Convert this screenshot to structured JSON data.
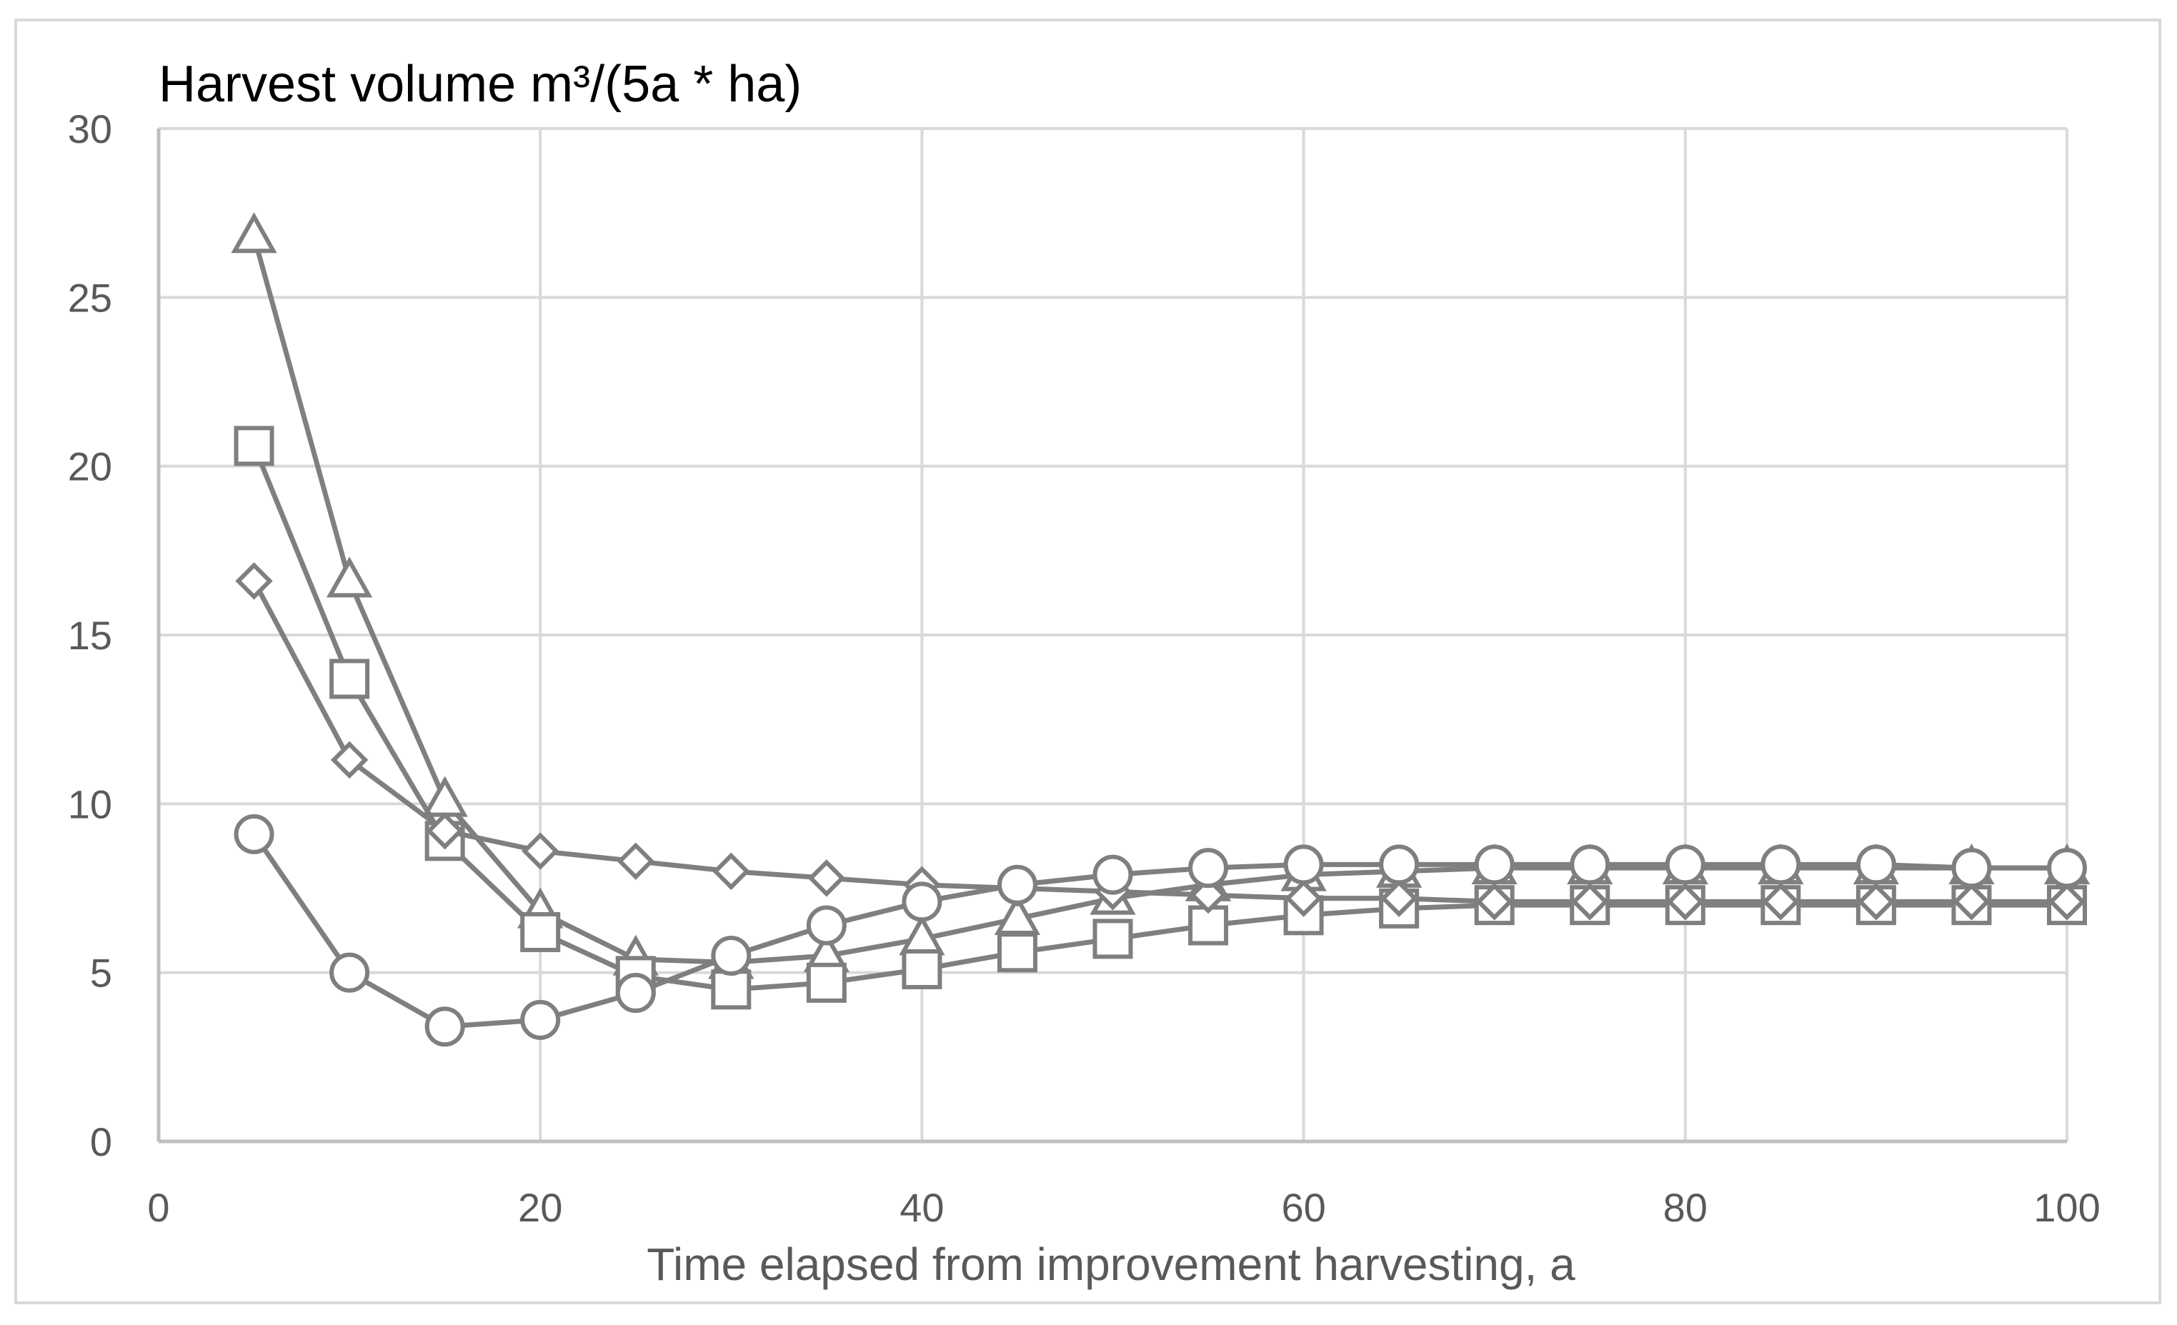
{
  "chart_data": {
    "type": "line",
    "title": "Harvest volume m³/(5a * ha)",
    "xlabel": "Time elapsed from improvement harvesting, a",
    "ylabel": "",
    "xlim": [
      0,
      100
    ],
    "ylim": [
      0,
      30
    ],
    "x_ticks": [
      0,
      20,
      40,
      60,
      80,
      100
    ],
    "y_ticks": [
      0,
      5,
      10,
      15,
      20,
      25,
      30
    ],
    "grid": true,
    "legend": "none",
    "colors": {
      "line": "#7f7f7f",
      "grid": "#d9d9d9",
      "axis": "#bfbfbf",
      "text": "#595959"
    },
    "x": [
      5,
      10,
      15,
      20,
      25,
      30,
      35,
      40,
      45,
      50,
      55,
      60,
      65,
      70,
      75,
      80,
      85,
      90,
      95,
      100
    ],
    "series": [
      {
        "name": "triangle",
        "marker": "triangle",
        "values": [
          26.8,
          16.6,
          10.1,
          6.8,
          5.4,
          5.3,
          5.5,
          6.0,
          6.6,
          7.2,
          7.6,
          7.9,
          8.0,
          8.1,
          8.1,
          8.1,
          8.1,
          8.1,
          8.1,
          8.1
        ]
      },
      {
        "name": "square",
        "marker": "square",
        "values": [
          20.6,
          13.7,
          8.9,
          6.2,
          4.9,
          4.5,
          4.7,
          5.1,
          5.6,
          6.0,
          6.4,
          6.7,
          6.9,
          7.0,
          7.0,
          7.0,
          7.0,
          7.0,
          7.0,
          7.0
        ]
      },
      {
        "name": "diamond",
        "marker": "diamond",
        "values": [
          16.6,
          11.3,
          9.2,
          8.6,
          8.3,
          8.0,
          7.8,
          7.6,
          7.5,
          7.4,
          7.3,
          7.2,
          7.2,
          7.1,
          7.1,
          7.1,
          7.1,
          7.1,
          7.1,
          7.1
        ]
      },
      {
        "name": "circle",
        "marker": "circle",
        "values": [
          9.1,
          5.0,
          3.4,
          3.6,
          4.4,
          5.5,
          6.4,
          7.1,
          7.6,
          7.9,
          8.1,
          8.2,
          8.2,
          8.2,
          8.2,
          8.2,
          8.2,
          8.2,
          8.1,
          8.1
        ]
      }
    ]
  }
}
